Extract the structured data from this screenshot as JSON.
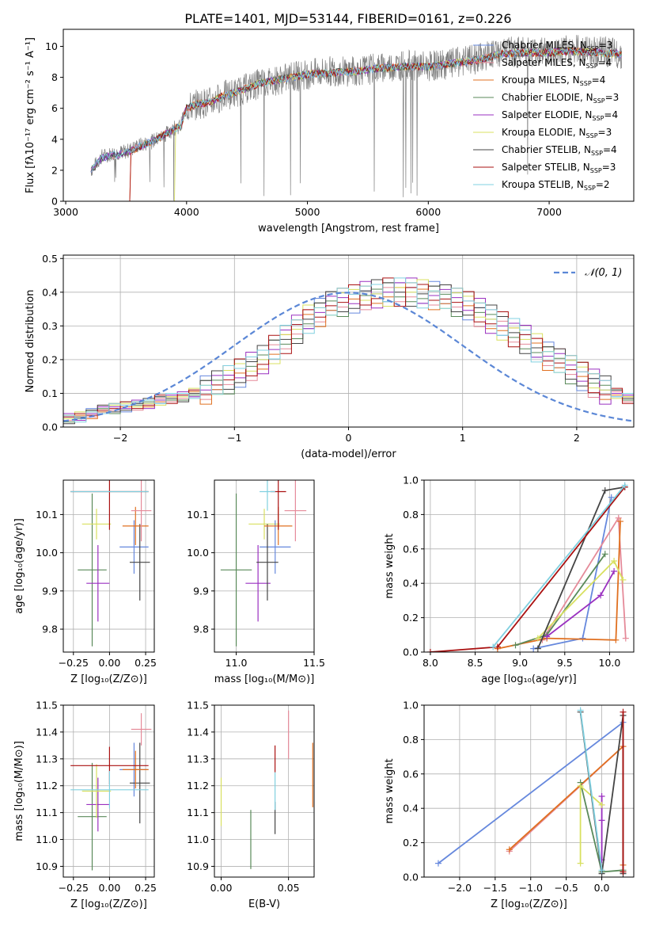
{
  "title": "PLATE=1401, MJD=53144, FIBERID=0161, z=0.226",
  "chart_data": [
    {
      "id": "spectrum",
      "type": "line",
      "xlabel": "wavelength [Angstrom, rest frame]",
      "ylabel": "Flux [fλ10⁻¹⁷ erg cm⁻² s⁻¹ A⁻¹]",
      "xlim": [
        2980,
        7700
      ],
      "ylim": [
        0,
        11.1
      ],
      "xticks": [
        3000,
        4000,
        5000,
        6000,
        7000
      ],
      "yticks": [
        0,
        2,
        4,
        6,
        8,
        10
      ],
      "grid": false,
      "legend_position": "upper-right",
      "observed": {
        "name": "",
        "color": "#808080",
        "x": [
          3210,
          3300,
          3400,
          3500,
          3600,
          3700,
          3800,
          3900,
          3950,
          4000,
          4100,
          4200,
          4300,
          4400,
          4500,
          4600,
          4800,
          5000,
          5200,
          5400,
          5600,
          5800,
          6000,
          6200,
          6400,
          6600,
          6800,
          7000,
          7200,
          7400,
          7600
        ],
        "y": [
          2.0,
          2.9,
          3.1,
          3.2,
          3.6,
          3.8,
          4.2,
          4.7,
          4.9,
          6.0,
          6.3,
          6.4,
          6.8,
          7.0,
          7.3,
          7.6,
          7.9,
          8.2,
          8.4,
          8.4,
          8.6,
          8.8,
          8.7,
          8.9,
          9.2,
          9.6,
          9.7,
          9.6,
          9.8,
          9.7,
          9.5
        ]
      },
      "model_shape": {
        "x": [
          3210,
          3300,
          3400,
          3500,
          3600,
          3700,
          3800,
          3900,
          3950,
          4000,
          4100,
          4200,
          4300,
          4400,
          4500,
          4600,
          4800,
          5000,
          5200,
          5400,
          5600,
          5800,
          6000,
          6200,
          6400,
          6600,
          6800,
          7000,
          7200,
          7400,
          7600
        ],
        "y": [
          2.0,
          2.8,
          3.0,
          3.1,
          3.5,
          3.8,
          4.2,
          4.7,
          4.8,
          6.0,
          6.3,
          6.4,
          6.8,
          7.0,
          7.3,
          7.6,
          7.9,
          8.2,
          8.3,
          8.4,
          8.6,
          8.7,
          8.7,
          8.9,
          9.1,
          9.5,
          9.6,
          9.6,
          9.7,
          9.6,
          9.5
        ]
      },
      "series": [
        {
          "name": "Chabrier MILES, N",
          "sub": "SSP",
          "suffix": "=3",
          "color": "#6688dd"
        },
        {
          "name": "Salpeter MILES, N",
          "sub": "SSP",
          "suffix": "=4",
          "color": "#e58a99"
        },
        {
          "name": "Kroupa MILES, N",
          "sub": "SSP",
          "suffix": "=4",
          "color": "#e07020"
        },
        {
          "name": "Chabrier ELODIE, N",
          "sub": "SSP",
          "suffix": "=3",
          "color": "#5a8a5a"
        },
        {
          "name": "Salpeter ELODIE, N",
          "sub": "SSP",
          "suffix": "=4",
          "color": "#9a30c0"
        },
        {
          "name": "Kroupa ELODIE, N",
          "sub": "SSP",
          "suffix": "=3",
          "color": "#d8e060"
        },
        {
          "name": "Chabrier STELIB, N",
          "sub": "SSP",
          "suffix": "=4",
          "color": "#444444"
        },
        {
          "name": "Salpeter STELIB, N",
          "sub": "SSP",
          "suffix": "=3",
          "color": "#aa1111"
        },
        {
          "name": "Kroupa STELIB, N",
          "sub": "SSP",
          "suffix": "=2",
          "color": "#80d0e0"
        }
      ]
    },
    {
      "id": "residuals",
      "type": "histogram",
      "xlabel": "(data-model)/error",
      "ylabel": "Normed distribution",
      "xlim": [
        -2.5,
        2.5
      ],
      "ylim": [
        0,
        0.51
      ],
      "xticks": [
        -2,
        -1,
        0,
        1,
        2
      ],
      "xtick_labels": [
        "−2",
        "−1",
        "0",
        "1",
        "2"
      ],
      "yticks": [
        0.0,
        0.1,
        0.2,
        0.3,
        0.4,
        0.5
      ],
      "ytick_labels": [
        "0.0",
        "0.1",
        "0.2",
        "0.3",
        "0.4",
        "0.5"
      ],
      "grid": true,
      "legend_position": "upper-right",
      "legend_label": "𝒩(0, 1)",
      "bin_width": 0.1,
      "bin_start": -2.5,
      "gaussian_color": "#5b87d6",
      "base_values": [
        0.025,
        0.03,
        0.04,
        0.05,
        0.055,
        0.06,
        0.065,
        0.07,
        0.08,
        0.085,
        0.09,
        0.1,
        0.11,
        0.125,
        0.14,
        0.16,
        0.18,
        0.2,
        0.23,
        0.26,
        0.29,
        0.32,
        0.34,
        0.36,
        0.37,
        0.38,
        0.39,
        0.395,
        0.4,
        0.4,
        0.4,
        0.395,
        0.39,
        0.38,
        0.37,
        0.36,
        0.34,
        0.32,
        0.3,
        0.28,
        0.26,
        0.235,
        0.21,
        0.19,
        0.17,
        0.15,
        0.13,
        0.11,
        0.1,
        0.085,
        0.07,
        0.06,
        0.05,
        0.045,
        0.04,
        0.035,
        0.03,
        0.028,
        0.026,
        0.025
      ]
    },
    {
      "id": "age-vs-Z",
      "type": "scatter",
      "xlabel": "Z [log₁₀(Z/Z⊙)]",
      "ylabel": "age  [log₁₀(age/yr)]",
      "xlim": [
        -0.32,
        0.31
      ],
      "ylim": [
        9.74,
        10.19
      ],
      "xticks": [
        -0.25,
        0.0,
        0.25
      ],
      "xtick_labels": [
        "−0.25",
        "0.00",
        "0.25"
      ],
      "yticks": [
        9.8,
        9.9,
        10.0,
        10.1
      ],
      "ytick_labels": [
        "9.8",
        "9.9",
        "10.0",
        "10.1"
      ],
      "grid": true,
      "points": [
        {
          "x": -0.12,
          "y": 9.955,
          "xerr": 0.1,
          "yerr": 0.2,
          "color": "#5a8a5a"
        },
        {
          "x": -0.08,
          "y": 9.92,
          "xerr": 0.08,
          "yerr": 0.1,
          "color": "#9a30c0"
        },
        {
          "x": -0.09,
          "y": 10.075,
          "xerr": 0.1,
          "yerr": 0.04,
          "color": "#d8e060"
        },
        {
          "x": 0.17,
          "y": 10.015,
          "xerr": 0.1,
          "yerr": 0.07,
          "color": "#6688dd"
        },
        {
          "x": 0.21,
          "y": 9.975,
          "xerr": 0.07,
          "yerr": 0.1,
          "color": "#444444"
        },
        {
          "x": 0.18,
          "y": 10.07,
          "xerr": 0.09,
          "yerr": 0.05,
          "color": "#e07020"
        },
        {
          "x": 0.22,
          "y": 10.11,
          "xerr": 0.07,
          "yerr": 0.08,
          "color": "#e58a99"
        },
        {
          "x": 0.0,
          "y": 10.16,
          "xerr": 0.27,
          "yerr": 0.1,
          "color": "#aa1111"
        },
        {
          "x": 0.0,
          "y": 10.16,
          "xerr": 0.27,
          "yerr": 0.0,
          "color": "#80d0e0"
        }
      ]
    },
    {
      "id": "age-vs-mass",
      "type": "scatter",
      "xlabel": "mass [log₁₀(M/M⊙)]",
      "ylabel": "",
      "xlim": [
        10.86,
        11.5
      ],
      "ylim": [
        9.74,
        10.19
      ],
      "xticks": [
        11.0,
        11.5
      ],
      "xtick_labels": [
        "11.0",
        "11.5"
      ],
      "yticks": [
        9.8,
        9.9,
        10.0,
        10.1
      ],
      "ytick_labels": [
        "9.8",
        "9.9",
        "10.0",
        "10.1"
      ],
      "grid": true,
      "points": [
        {
          "x": 11.0,
          "y": 9.955,
          "xerr": 0.1,
          "yerr": 0.2,
          "color": "#5a8a5a"
        },
        {
          "x": 11.14,
          "y": 9.92,
          "xerr": 0.08,
          "yerr": 0.1,
          "color": "#9a30c0"
        },
        {
          "x": 11.18,
          "y": 10.075,
          "xerr": 0.1,
          "yerr": 0.04,
          "color": "#d8e060"
        },
        {
          "x": 11.25,
          "y": 10.015,
          "xerr": 0.1,
          "yerr": 0.07,
          "color": "#6688dd"
        },
        {
          "x": 11.2,
          "y": 9.975,
          "xerr": 0.07,
          "yerr": 0.1,
          "color": "#444444"
        },
        {
          "x": 11.27,
          "y": 10.07,
          "xerr": 0.09,
          "yerr": 0.05,
          "color": "#e07020"
        },
        {
          "x": 11.38,
          "y": 10.11,
          "xerr": 0.07,
          "yerr": 0.08,
          "color": "#e58a99"
        },
        {
          "x": 11.27,
          "y": 10.16,
          "xerr": 0.05,
          "yerr": 0.1,
          "color": "#aa1111"
        },
        {
          "x": 11.2,
          "y": 10.16,
          "xerr": 0.05,
          "yerr": 0.05,
          "color": "#80d0e0"
        }
      ]
    },
    {
      "id": "mass-weight-vs-age",
      "type": "line",
      "xlabel": "age  [log₁₀(age/yr)]",
      "ylabel": "mass weight",
      "xlim": [
        7.93,
        10.27
      ],
      "ylim": [
        0,
        1.0
      ],
      "xticks": [
        8.0,
        8.5,
        9.0,
        9.5,
        10.0
      ],
      "xtick_labels": [
        "8.0",
        "8.5",
        "9.0",
        "9.5",
        "10.0"
      ],
      "yticks": [
        0.0,
        0.2,
        0.4,
        0.6,
        0.8,
        1.0
      ],
      "ytick_labels": [
        "0.0",
        "0.2",
        "0.4",
        "0.6",
        "0.8",
        "1.0"
      ],
      "grid": true,
      "series": [
        {
          "color": "#6688dd",
          "x": [
            9.15,
            9.7,
            10.02
          ],
          "y": [
            0.02,
            0.08,
            0.9
          ]
        },
        {
          "color": "#e58a99",
          "x": [
            9.25,
            10.1,
            10.18
          ],
          "y": [
            0.07,
            0.78,
            0.08
          ]
        },
        {
          "color": "#e07020",
          "x": [
            8.75,
            9.3,
            10.07,
            10.12
          ],
          "y": [
            0.02,
            0.08,
            0.07,
            0.76
          ]
        },
        {
          "color": "#5a8a5a",
          "x": [
            8.95,
            9.3,
            9.95
          ],
          "y": [
            0.04,
            0.1,
            0.57
          ]
        },
        {
          "color": "#9a30c0",
          "x": [
            9.3,
            9.9,
            10.05
          ],
          "y": [
            0.09,
            0.33,
            0.47
          ]
        },
        {
          "color": "#d8e060",
          "x": [
            9.2,
            10.05,
            10.15
          ],
          "y": [
            0.08,
            0.53,
            0.42
          ]
        },
        {
          "color": "#444444",
          "x": [
            9.2,
            9.95,
            10.17
          ],
          "y": [
            0.02,
            0.94,
            0.96
          ]
        },
        {
          "color": "#aa1111",
          "x": [
            8.0,
            8.75,
            10.17
          ],
          "y": [
            0.0,
            0.03,
            0.96
          ]
        },
        {
          "color": "#80d0e0",
          "x": [
            8.7,
            10.17
          ],
          "y": [
            0.03,
            0.97
          ]
        }
      ]
    },
    {
      "id": "mass-vs-Z",
      "type": "scatter",
      "xlabel": "Z [log₁₀(Z/Z⊙)]",
      "ylabel": "mass [log₁₀(M/M⊙)]",
      "xlim": [
        -0.32,
        0.31
      ],
      "ylim": [
        10.86,
        11.5
      ],
      "xticks": [
        -0.25,
        0.0,
        0.25
      ],
      "xtick_labels": [
        "−0.25",
        "0.00",
        "0.25"
      ],
      "yticks": [
        10.9,
        11.0,
        11.1,
        11.2,
        11.3,
        11.4,
        11.5
      ],
      "ytick_labels": [
        "10.9",
        "11.0",
        "11.1",
        "11.2",
        "11.3",
        "11.4",
        "11.5"
      ],
      "grid": true,
      "points": [
        {
          "x": -0.12,
          "y": 11.085,
          "xerr": 0.1,
          "yerr": 0.2,
          "color": "#5a8a5a"
        },
        {
          "x": -0.08,
          "y": 11.13,
          "xerr": 0.08,
          "yerr": 0.1,
          "color": "#9a30c0"
        },
        {
          "x": -0.09,
          "y": 11.18,
          "xerr": 0.1,
          "yerr": 0.1,
          "color": "#d8e060"
        },
        {
          "x": 0.17,
          "y": 11.26,
          "xerr": 0.1,
          "yerr": 0.1,
          "color": "#6688dd"
        },
        {
          "x": 0.21,
          "y": 11.21,
          "xerr": 0.07,
          "yerr": 0.15,
          "color": "#444444"
        },
        {
          "x": 0.18,
          "y": 11.26,
          "xerr": 0.09,
          "yerr": 0.07,
          "color": "#e07020"
        },
        {
          "x": 0.22,
          "y": 11.41,
          "xerr": 0.07,
          "yerr": 0.06,
          "color": "#e58a99"
        },
        {
          "x": 0.0,
          "y": 11.275,
          "xerr": 0.27,
          "yerr": 0.07,
          "color": "#aa1111"
        },
        {
          "x": 0.0,
          "y": 11.185,
          "xerr": 0.27,
          "yerr": 0.07,
          "color": "#80d0e0"
        }
      ]
    },
    {
      "id": "mass-vs-EBV",
      "type": "scatter",
      "xlabel": "E(B-V)",
      "ylabel": "",
      "xlim": [
        -0.005,
        0.069
      ],
      "ylim": [
        10.86,
        11.5
      ],
      "xticks": [
        0.0,
        0.05
      ],
      "xtick_labels": [
        "0.00",
        "0.05"
      ],
      "yticks": [
        10.9,
        11.0,
        11.1,
        11.2,
        11.3,
        11.4,
        11.5
      ],
      "ytick_labels": [
        "10.9",
        "11.0",
        "11.1",
        "11.2",
        "11.3",
        "11.4",
        "11.5"
      ],
      "grid": true,
      "points": [
        {
          "x": 0.0,
          "y": 11.14,
          "xerr": 0,
          "yerr": 0.09,
          "color": "#d8e060"
        },
        {
          "x": 0.022,
          "y": 11.0,
          "xerr": 0,
          "yerr": 0.11,
          "color": "#5a8a5a"
        },
        {
          "x": 0.04,
          "y": 11.08,
          "xerr": 0,
          "yerr": 0.06,
          "color": "#444444"
        },
        {
          "x": 0.04,
          "y": 11.3,
          "xerr": 0,
          "yerr": 0.05,
          "color": "#aa1111"
        },
        {
          "x": 0.04,
          "y": 11.18,
          "xerr": 0,
          "yerr": 0.07,
          "color": "#80d0e0"
        },
        {
          "x": 0.05,
          "y": 11.39,
          "xerr": 0,
          "yerr": 0.09,
          "color": "#e58a99"
        },
        {
          "x": 0.068,
          "y": 11.24,
          "xerr": 0,
          "yerr": 0.12,
          "color": "#e07020"
        }
      ]
    },
    {
      "id": "mass-weight-vs-Z",
      "type": "line",
      "xlabel": "Z [log₁₀(Z/Z⊙)]",
      "ylabel": "mass weight",
      "xlim": [
        -2.5,
        0.45
      ],
      "ylim": [
        0,
        1.0
      ],
      "xticks": [
        -2.0,
        -1.5,
        -1.0,
        -0.5,
        0.0
      ],
      "xtick_labels": [
        "−2.0",
        "−1.5",
        "−1.0",
        "−0.5",
        "0.0"
      ],
      "yticks": [
        0.0,
        0.2,
        0.4,
        0.6,
        0.8,
        1.0
      ],
      "ytick_labels": [
        "0.0",
        "0.2",
        "0.4",
        "0.6",
        "0.8",
        "1.0"
      ],
      "grid": true,
      "series": [
        {
          "color": "#6688dd",
          "x": [
            -2.3,
            0.3
          ],
          "y": [
            0.08,
            0.9
          ]
        },
        {
          "color": "#e58a99",
          "x": [
            -1.3,
            0.3
          ],
          "y": [
            0.15,
            0.76
          ]
        },
        {
          "color": "#e07020",
          "x": [
            -1.3,
            0.3,
            0.3
          ],
          "y": [
            0.16,
            0.76,
            0.07
          ]
        },
        {
          "color": "#5a8a5a",
          "x": [
            -0.3,
            0.0,
            0.3
          ],
          "y": [
            0.55,
            0.03,
            0.04
          ]
        },
        {
          "color": "#9a30c0",
          "x": [
            0.0,
            0.0,
            0.0
          ],
          "y": [
            0.47,
            0.1,
            0.33
          ]
        },
        {
          "color": "#d8e060",
          "x": [
            -0.3,
            -0.3,
            0.0
          ],
          "y": [
            0.08,
            0.53,
            0.42
          ]
        },
        {
          "color": "#444444",
          "x": [
            -0.3,
            0.0,
            0.3,
            0.3
          ],
          "y": [
            0.96,
            0.02,
            0.94,
            0.02
          ]
        },
        {
          "color": "#aa1111",
          "x": [
            0.3,
            0.3
          ],
          "y": [
            0.96,
            0.03
          ]
        },
        {
          "color": "#80d0e0",
          "x": [
            -0.3,
            0.0
          ],
          "y": [
            0.97,
            0.04
          ]
        }
      ]
    }
  ]
}
